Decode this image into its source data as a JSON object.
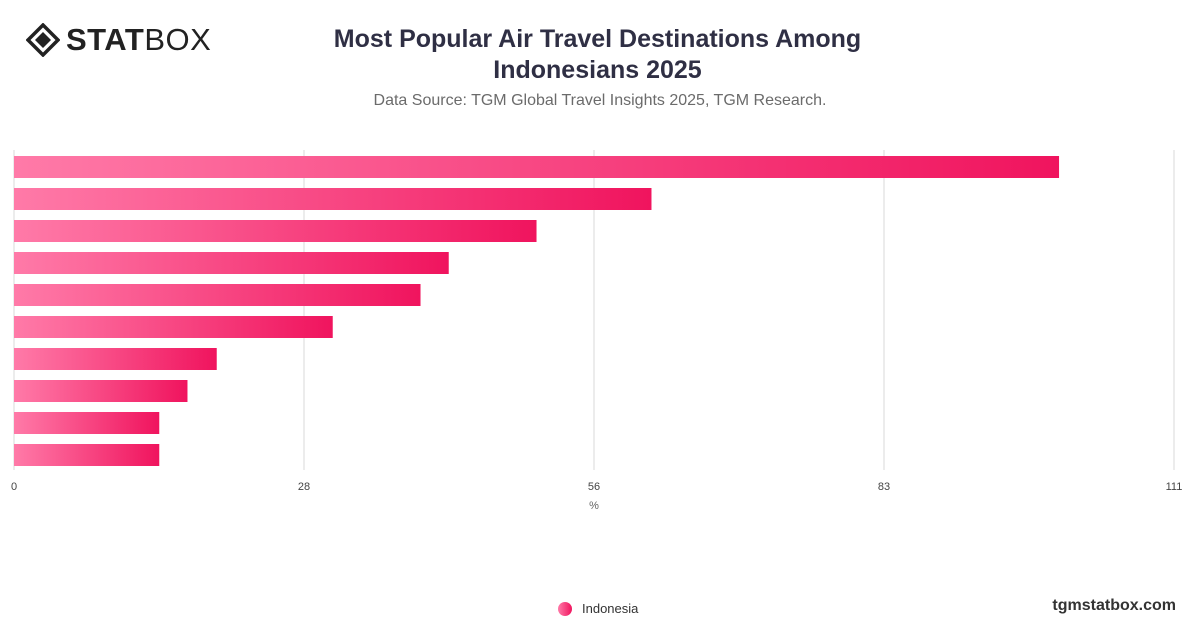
{
  "brand": {
    "logo_bold": "STAT",
    "logo_light": "BOX",
    "site": "tgmstatbox.com"
  },
  "colors": {
    "bar_start": "#ff7aa8",
    "bar_end": "#f0145e",
    "grid": "#d9d9d9"
  },
  "chart_data": {
    "type": "bar",
    "orientation": "horizontal",
    "title": "Most Popular Air Travel Destinations Among Indonesians 2025",
    "subtitle": "Data Source: TGM Global Travel Insights 2025, TGM Research.",
    "xlabel": "%",
    "xlim": [
      0,
      111
    ],
    "xticks": [
      "0",
      "28",
      "56",
      "83",
      "111"
    ],
    "grid": true,
    "legend_position": "bottom-center",
    "categories": [
      "",
      "",
      "",
      "",
      "",
      "",
      "",
      "",
      "",
      ""
    ],
    "series": [
      {
        "name": "Indonesia",
        "values": [
          100,
          61,
          50,
          41.6,
          38.9,
          30.5,
          19.4,
          16.6,
          13.9,
          13.9
        ]
      }
    ]
  }
}
